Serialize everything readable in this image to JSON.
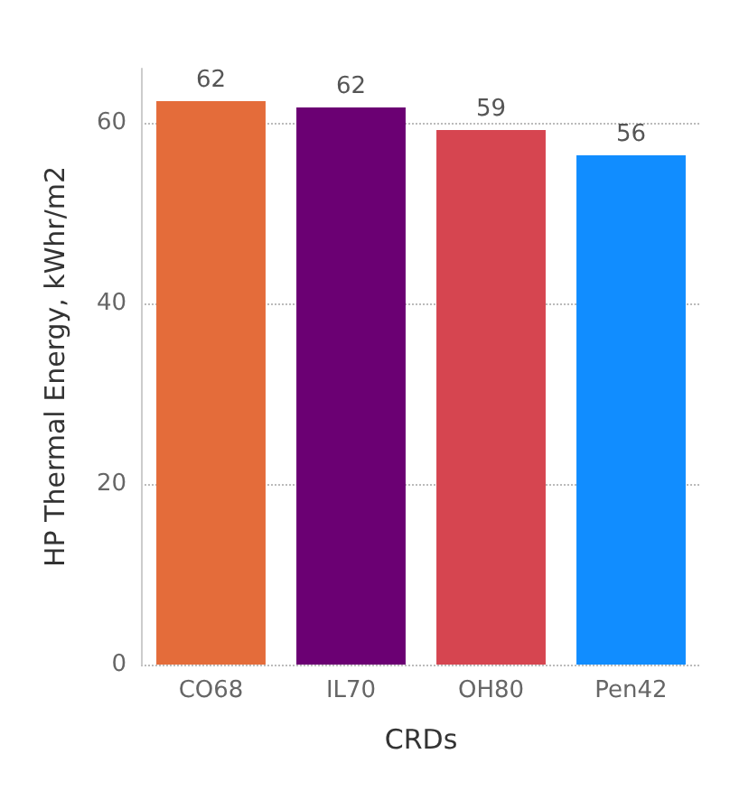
{
  "chart_data": {
    "type": "bar",
    "xlabel": "CRDs",
    "ylabel": "HP Thermal Energy, kWhr/m2",
    "categories": [
      "CO68",
      "IL70",
      "OH80",
      "Pen42"
    ],
    "values": [
      62.4,
      61.7,
      59.2,
      56.4
    ],
    "value_labels": [
      "62",
      "62",
      "59",
      "56"
    ],
    "colors": [
      "#e46c3a",
      "#6b0073",
      "#d64550",
      "#118dff"
    ],
    "ylim": [
      0,
      66
    ],
    "yticks": [
      0,
      20,
      40,
      60
    ],
    "grid": "y"
  }
}
